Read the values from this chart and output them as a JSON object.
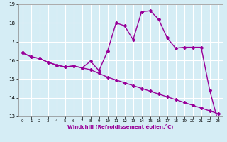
{
  "xlabel": "Windchill (Refroidissement éolien,°C)",
  "x": [
    0,
    1,
    2,
    3,
    4,
    5,
    6,
    7,
    8,
    9,
    10,
    11,
    12,
    13,
    14,
    15,
    16,
    17,
    18,
    19,
    20,
    21,
    22,
    23
  ],
  "line1": [
    16.4,
    16.2,
    16.1,
    15.9,
    15.75,
    15.65,
    15.7,
    15.6,
    15.5,
    15.3,
    15.1,
    14.95,
    14.8,
    14.65,
    14.5,
    14.35,
    14.2,
    14.05,
    13.9,
    13.75,
    13.6,
    13.45,
    13.3,
    13.15
  ],
  "line2": [
    16.4,
    16.2,
    16.1,
    15.9,
    15.75,
    15.65,
    15.7,
    15.6,
    15.95,
    15.45,
    16.5,
    18.0,
    17.85,
    17.1,
    18.6,
    18.65,
    18.2,
    17.2,
    16.65,
    16.7,
    16.7,
    16.7,
    14.4,
    12.7
  ],
  "line_color": "#990099",
  "bg_color": "#d5edf5",
  "grid_color": "#ffffff",
  "ylim": [
    13,
    19
  ],
  "yticks": [
    13,
    14,
    15,
    16,
    17,
    18,
    19
  ],
  "xticks": [
    0,
    1,
    2,
    3,
    4,
    5,
    6,
    7,
    8,
    9,
    10,
    11,
    12,
    13,
    14,
    15,
    16,
    17,
    18,
    19,
    20,
    21,
    22,
    23
  ]
}
